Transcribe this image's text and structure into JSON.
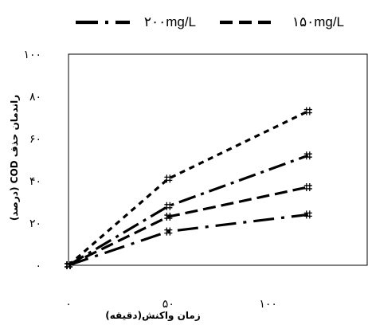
{
  "chart_data": {
    "type": "line",
    "xlabel": "زمان واکنش(دقیقه)",
    "ylabel": "راندمان حذف COD (درصد)",
    "x_ticks": [
      "۰",
      "۵۰",
      "۱۰۰"
    ],
    "y_ticks": [
      "۰",
      "۲۰",
      "۴۰",
      "۶۰",
      "۸۰",
      "۱۰۰"
    ],
    "xlim": [
      0,
      150
    ],
    "ylim": [
      0,
      100
    ],
    "grid": false,
    "legend_position": "top",
    "x": [
      0,
      50,
      120
    ],
    "series": [
      {
        "name": "۲۰۰mg/L",
        "values": [
          0,
          41,
          73
        ]
      },
      {
        "name": "۱۵۰mg/L",
        "values": [
          0,
          28,
          52
        ]
      },
      {
        "values": [
          0,
          23,
          37
        ]
      },
      {
        "values": [
          0,
          16,
          24
        ]
      }
    ],
    "colors": {
      "line": "#000000"
    }
  }
}
